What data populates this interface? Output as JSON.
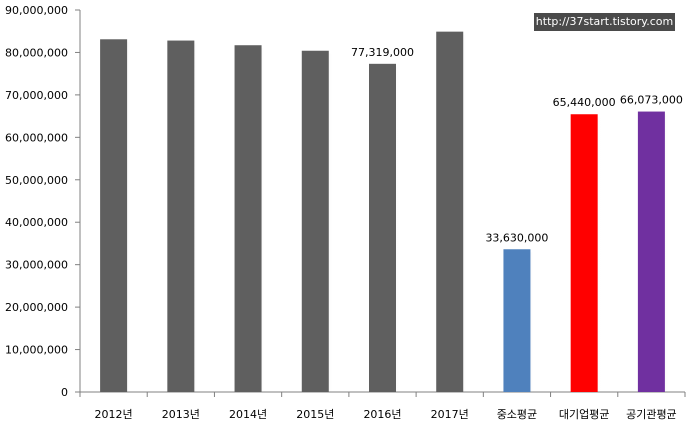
{
  "watermark": "http://37start.tistory.com",
  "chart_data": {
    "type": "bar",
    "categories": [
      "2012년",
      "2013년",
      "2014년",
      "2015년",
      "2016년",
      "2017년",
      "중소평균",
      "대기업평균",
      "공기관평균"
    ],
    "values": [
      83100000,
      82800000,
      81700000,
      80400000,
      77319000,
      84900000,
      33630000,
      65440000,
      66073000
    ],
    "data_labels": [
      "",
      "",
      "",
      "",
      "77,319,000",
      "",
      "33,630,000",
      "65,440,000",
      "66,073,000"
    ],
    "colors": [
      "#5f5f5f",
      "#5f5f5f",
      "#5f5f5f",
      "#5f5f5f",
      "#5f5f5f",
      "#5f5f5f",
      "#4f81bd",
      "#ff0000",
      "#7030a0"
    ],
    "ylim": [
      0,
      90000000
    ],
    "yticks": [
      "0",
      "10,000,000",
      "20,000,000",
      "30,000,000",
      "40,000,000",
      "50,000,000",
      "60,000,000",
      "70,000,000",
      "80,000,000",
      "90,000,000"
    ],
    "grid": false,
    "title": "",
    "xlabel": "",
    "ylabel": ""
  }
}
